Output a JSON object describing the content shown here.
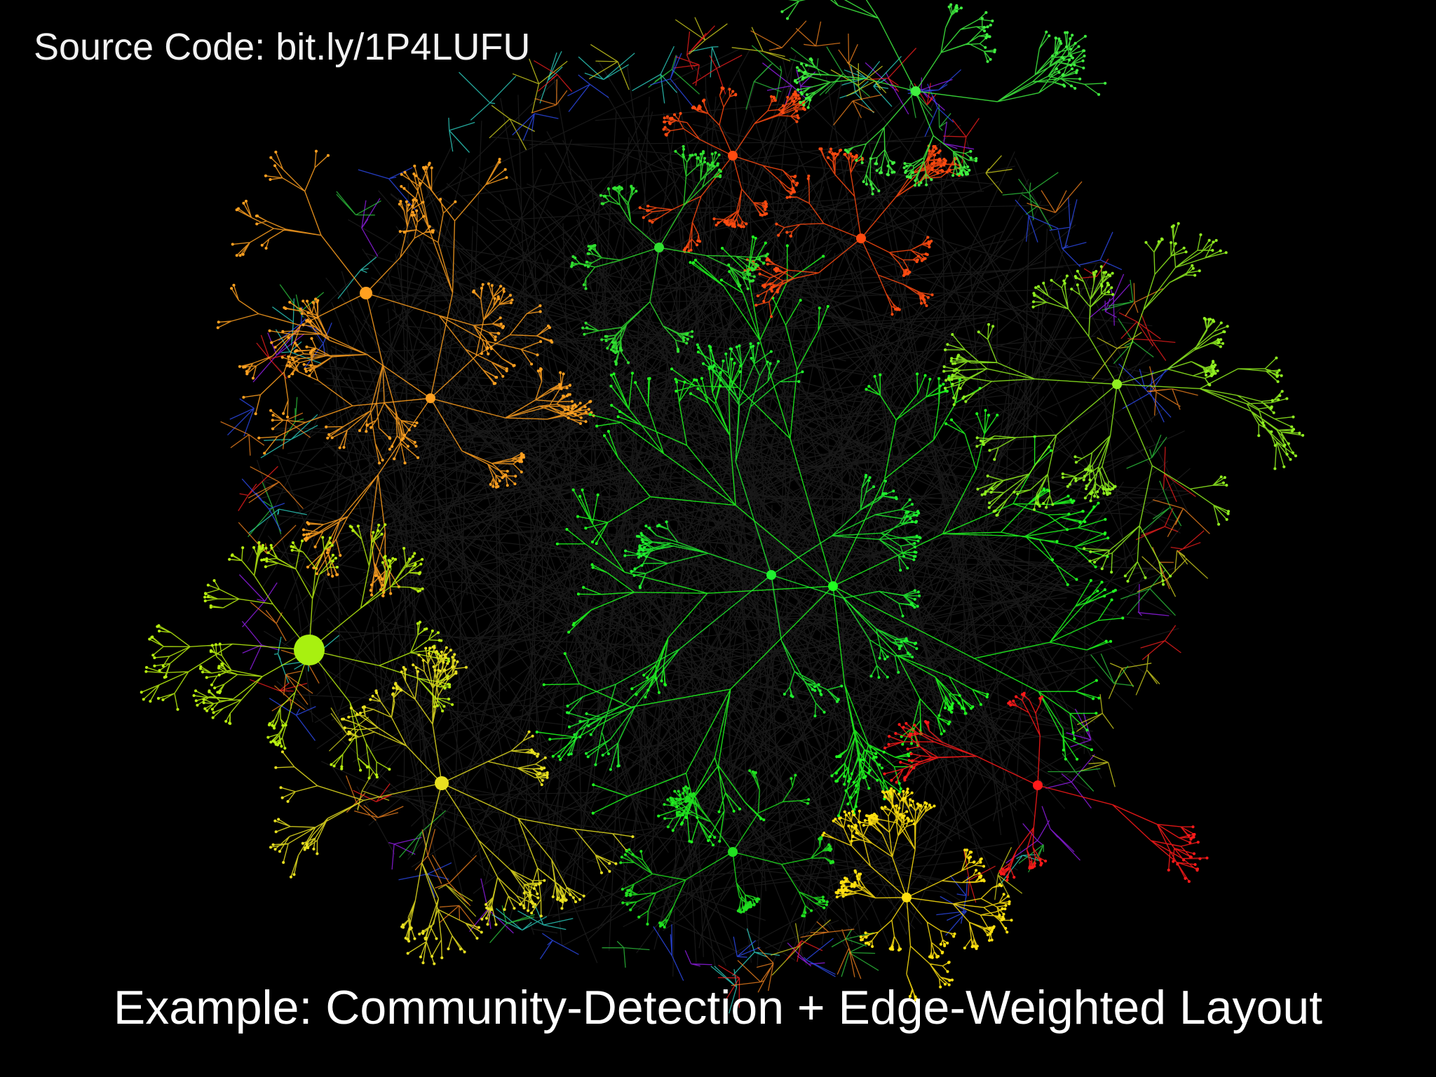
{
  "source_code": "Source Code: bit.ly/1P4LUFU",
  "caption": "Example: Community-Detection + Edge-Weighted Layout"
}
